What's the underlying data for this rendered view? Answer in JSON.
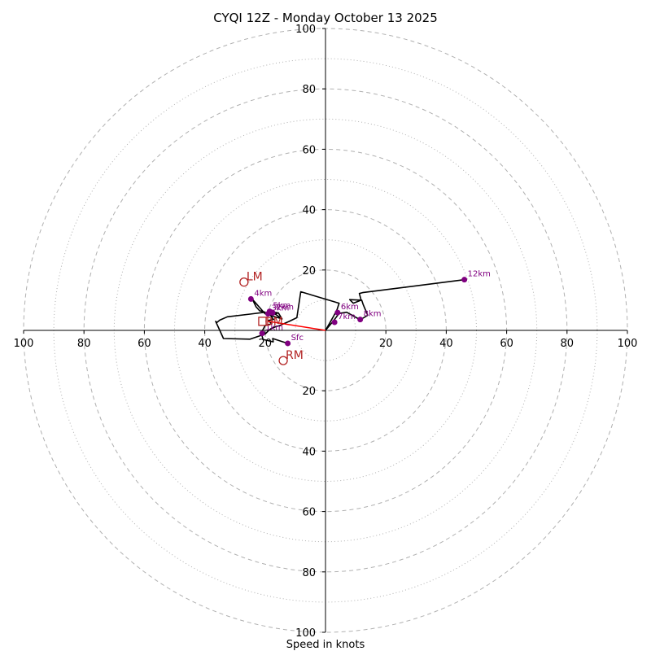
{
  "chart_data": {
    "type": "hodograph",
    "title": "CYQI 12Z - Monday October 13 2025",
    "xlabel": "Speed in knots",
    "axis_max": 100,
    "ring_major": [
      20,
      40,
      60,
      80,
      100
    ],
    "ring_minor": [
      10,
      30,
      50,
      70,
      90
    ],
    "tick_labels": {
      "left": [
        "100",
        "80",
        "60",
        "40",
        "20"
      ],
      "right": [
        "20",
        "40",
        "60",
        "80",
        "100"
      ],
      "top": [
        "20",
        "40",
        "60",
        "80",
        "100"
      ],
      "bottom": [
        "20",
        "40",
        "60",
        "80",
        "100"
      ]
    },
    "tick_values": [
      20,
      40,
      60,
      80,
      100
    ],
    "wind_trace": [
      [
        -12.5,
        -4.3
      ],
      [
        -17.5,
        -2.7
      ],
      [
        -17.3,
        -3.8
      ],
      [
        -20.7,
        -3.0
      ],
      [
        -21.3,
        -0.8
      ],
      [
        -20.0,
        1.6
      ],
      [
        -17.8,
        2.2
      ],
      [
        -19.0,
        3.3
      ],
      [
        -17.2,
        3.6
      ],
      [
        -19.0,
        5.9
      ],
      [
        -17.5,
        6.0
      ],
      [
        -14.4,
        3.8
      ],
      [
        -15.6,
        5.8
      ],
      [
        -18.0,
        6.2
      ],
      [
        -18.5,
        5.6
      ],
      [
        -17.3,
        5.3
      ],
      [
        -15.6,
        5.8
      ],
      [
        -14.4,
        3.8
      ],
      [
        -20.0,
        5.5
      ],
      [
        -24.2,
        10.3
      ],
      [
        -23.0,
        7.8
      ],
      [
        -21.8,
        6.5
      ],
      [
        -20.0,
        6.0
      ],
      [
        -25.0,
        5.4
      ],
      [
        -32.5,
        4.5
      ],
      [
        -35.0,
        3.4
      ],
      [
        -36.0,
        2.6
      ],
      [
        -36.4,
        3.0
      ],
      [
        -35.0,
        0.0
      ],
      [
        -33.8,
        -2.7
      ],
      [
        -25.0,
        -2.9
      ],
      [
        -20.0,
        -1.2
      ],
      [
        -18.8,
        0.0
      ],
      [
        -18.8,
        0.0
      ],
      [
        -18.0,
        0.6
      ],
      [
        -16.5,
        1.2
      ],
      [
        -15.0,
        1.7
      ],
      [
        -12.0,
        3.0
      ],
      [
        -9.5,
        4.2
      ],
      [
        -8.2,
        12.8
      ],
      [
        4.5,
        9.0
      ],
      [
        3.8,
        6.8
      ],
      [
        2.5,
        4.4
      ],
      [
        0.0,
        0.0
      ],
      [
        2.5,
        3.0
      ],
      [
        4.5,
        5.6
      ],
      [
        7.0,
        6.0
      ],
      [
        11.5,
        3.5
      ],
      [
        14.0,
        5.0
      ],
      [
        12.5,
        8.5
      ],
      [
        12.0,
        10.0
      ],
      [
        8.0,
        10.2
      ],
      [
        9.2,
        9.0
      ],
      [
        11.8,
        10.0
      ],
      [
        11.2,
        12.2
      ],
      [
        12.3,
        12.5
      ],
      [
        46.0,
        16.8
      ]
    ],
    "height_markers": [
      {
        "label": "Sfc",
        "u": -12.5,
        "v": -4.3
      },
      {
        "label": "1km",
        "u": -21.0,
        "v": -1.0
      },
      {
        "label": "2km",
        "u": -17.5,
        "v": 5.8
      },
      {
        "label": "3km",
        "u": -19.0,
        "v": 5.5
      },
      {
        "label": "4km",
        "u": -24.7,
        "v": 10.4
      },
      {
        "label": "5km",
        "u": -18.5,
        "v": 6.3
      },
      {
        "label": "6km",
        "u": 4.0,
        "v": 5.9
      },
      {
        "label": "7km",
        "u": 3.0,
        "v": 2.7
      },
      {
        "label": "8km",
        "u": 11.5,
        "v": 3.6
      },
      {
        "label": "12km",
        "u": 46.0,
        "v": 16.8
      }
    ],
    "mean_wind_vector": {
      "u": -19.0,
      "v": 3.0
    },
    "storm_motion": [
      {
        "label": "LM",
        "u": -27.0,
        "v": 16.0
      },
      {
        "label": "RM",
        "u": -14.0,
        "v": -10.0
      },
      {
        "label": "DM",
        "u": -20.5,
        "v": 3.0
      }
    ],
    "colors": {
      "trace": "#000000",
      "markers": "#800080",
      "motion": "#b22222",
      "mean_wind": "#ff0000",
      "rings": "#b0b0b0"
    }
  }
}
